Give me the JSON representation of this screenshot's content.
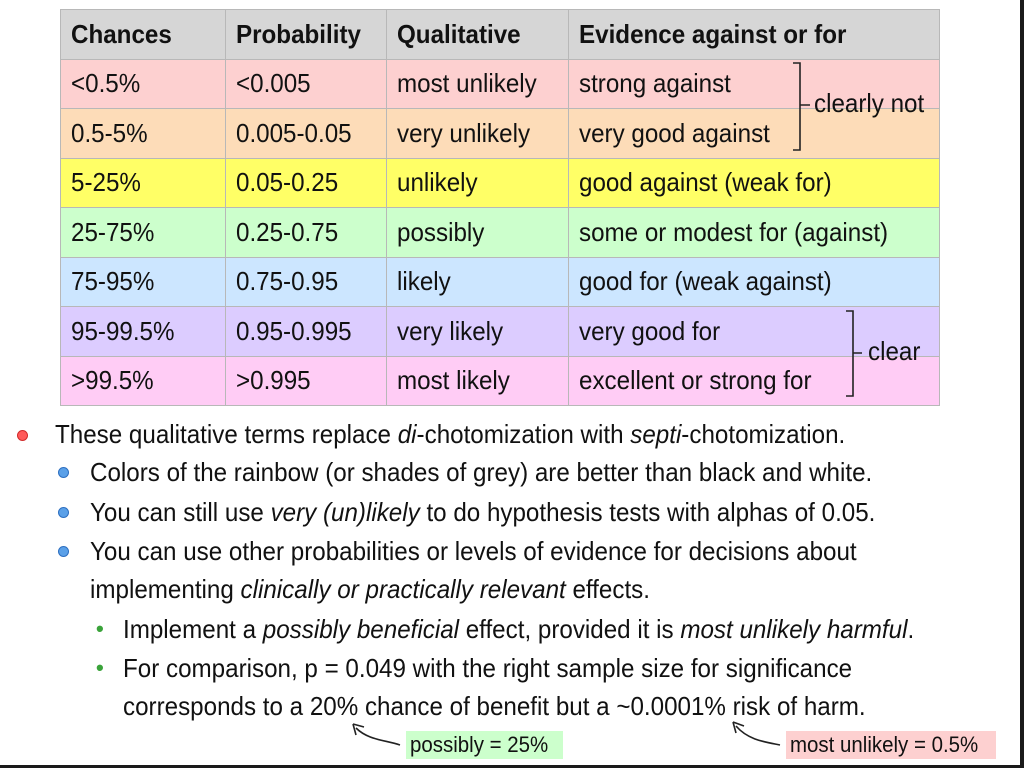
{
  "table": {
    "headers": [
      "Chances",
      "Probability",
      "Qualitative",
      "Evidence against or for"
    ],
    "rows": [
      {
        "chances": "<0.5%",
        "probability": "<0.005",
        "qualitative": "most unlikely",
        "evidence": "strong against",
        "color": "#fdd0d0"
      },
      {
        "chances": "0.5-5%",
        "probability": "0.005-0.05",
        "qualitative": "very unlikely",
        "evidence": "very good against",
        "color": "#fddcb8"
      },
      {
        "chances": "5-25%",
        "probability": "0.05-0.25",
        "qualitative": "unlikely",
        "evidence": "good against (weak for)",
        "color": "#ffff66"
      },
      {
        "chances": "25-75%",
        "probability": "0.25-0.75",
        "qualitative": "possibly",
        "evidence": "some or modest for (against)",
        "color": "#ccffcc"
      },
      {
        "chances": "75-95%",
        "probability": "0.75-0.95",
        "qualitative": "likely",
        "evidence": "good for (weak against)",
        "color": "#cce6ff"
      },
      {
        "chances": "95-99.5%",
        "probability": "0.95-0.995",
        "qualitative": "very likely",
        "evidence": "very good for",
        "color": "#dcccff"
      },
      {
        "chances": ">99.5%",
        "probability": ">0.995",
        "qualitative": "most likely",
        "evidence": "excellent or strong for",
        "color": "#ffccf5"
      }
    ],
    "header_color": "#d6d6d6",
    "bracket_top": "clearly not",
    "bracket_bottom": "clear"
  },
  "bullets": {
    "b1": {
      "pre": "These qualitative terms replace ",
      "em1": "di",
      "mid": "-chotomization with ",
      "em2": "septi",
      "post": "-chotomization."
    },
    "b2": "Colors of the rainbow (or shades of grey) are better than black and white.",
    "b3": {
      "pre": "You can still use ",
      "em": "very (un)likely",
      "post": " to do hypothesis tests with alphas of 0.05."
    },
    "b4_line1": "You can use other probabilities or levels of evidence for decisions about",
    "b4_line2": {
      "pre": "implementing ",
      "em": "clinically or practically relevant",
      "post": " effects."
    },
    "b5": {
      "pre": "Implement a ",
      "em1": "possibly beneficial",
      "mid": " effect, provided it is ",
      "em2": "most unlikely harmful",
      "post": "."
    },
    "b6_line1": "For comparison, p = 0.049 with the right sample size for significance",
    "b6_line2": "corresponds to a 20% chance of benefit but a ~0.0001% risk of harm."
  },
  "notes": {
    "possibly": "possibly = 25%",
    "most_unlikely": "most unlikely = 0.5%",
    "possibly_color": "#ccffcc",
    "most_unlikely_color": "#fdd0d0"
  },
  "colors": {
    "bullet_blue": "#5aa0e8",
    "bullet_red": "#ff5a5a",
    "bullet_green": "#3aa33a"
  }
}
